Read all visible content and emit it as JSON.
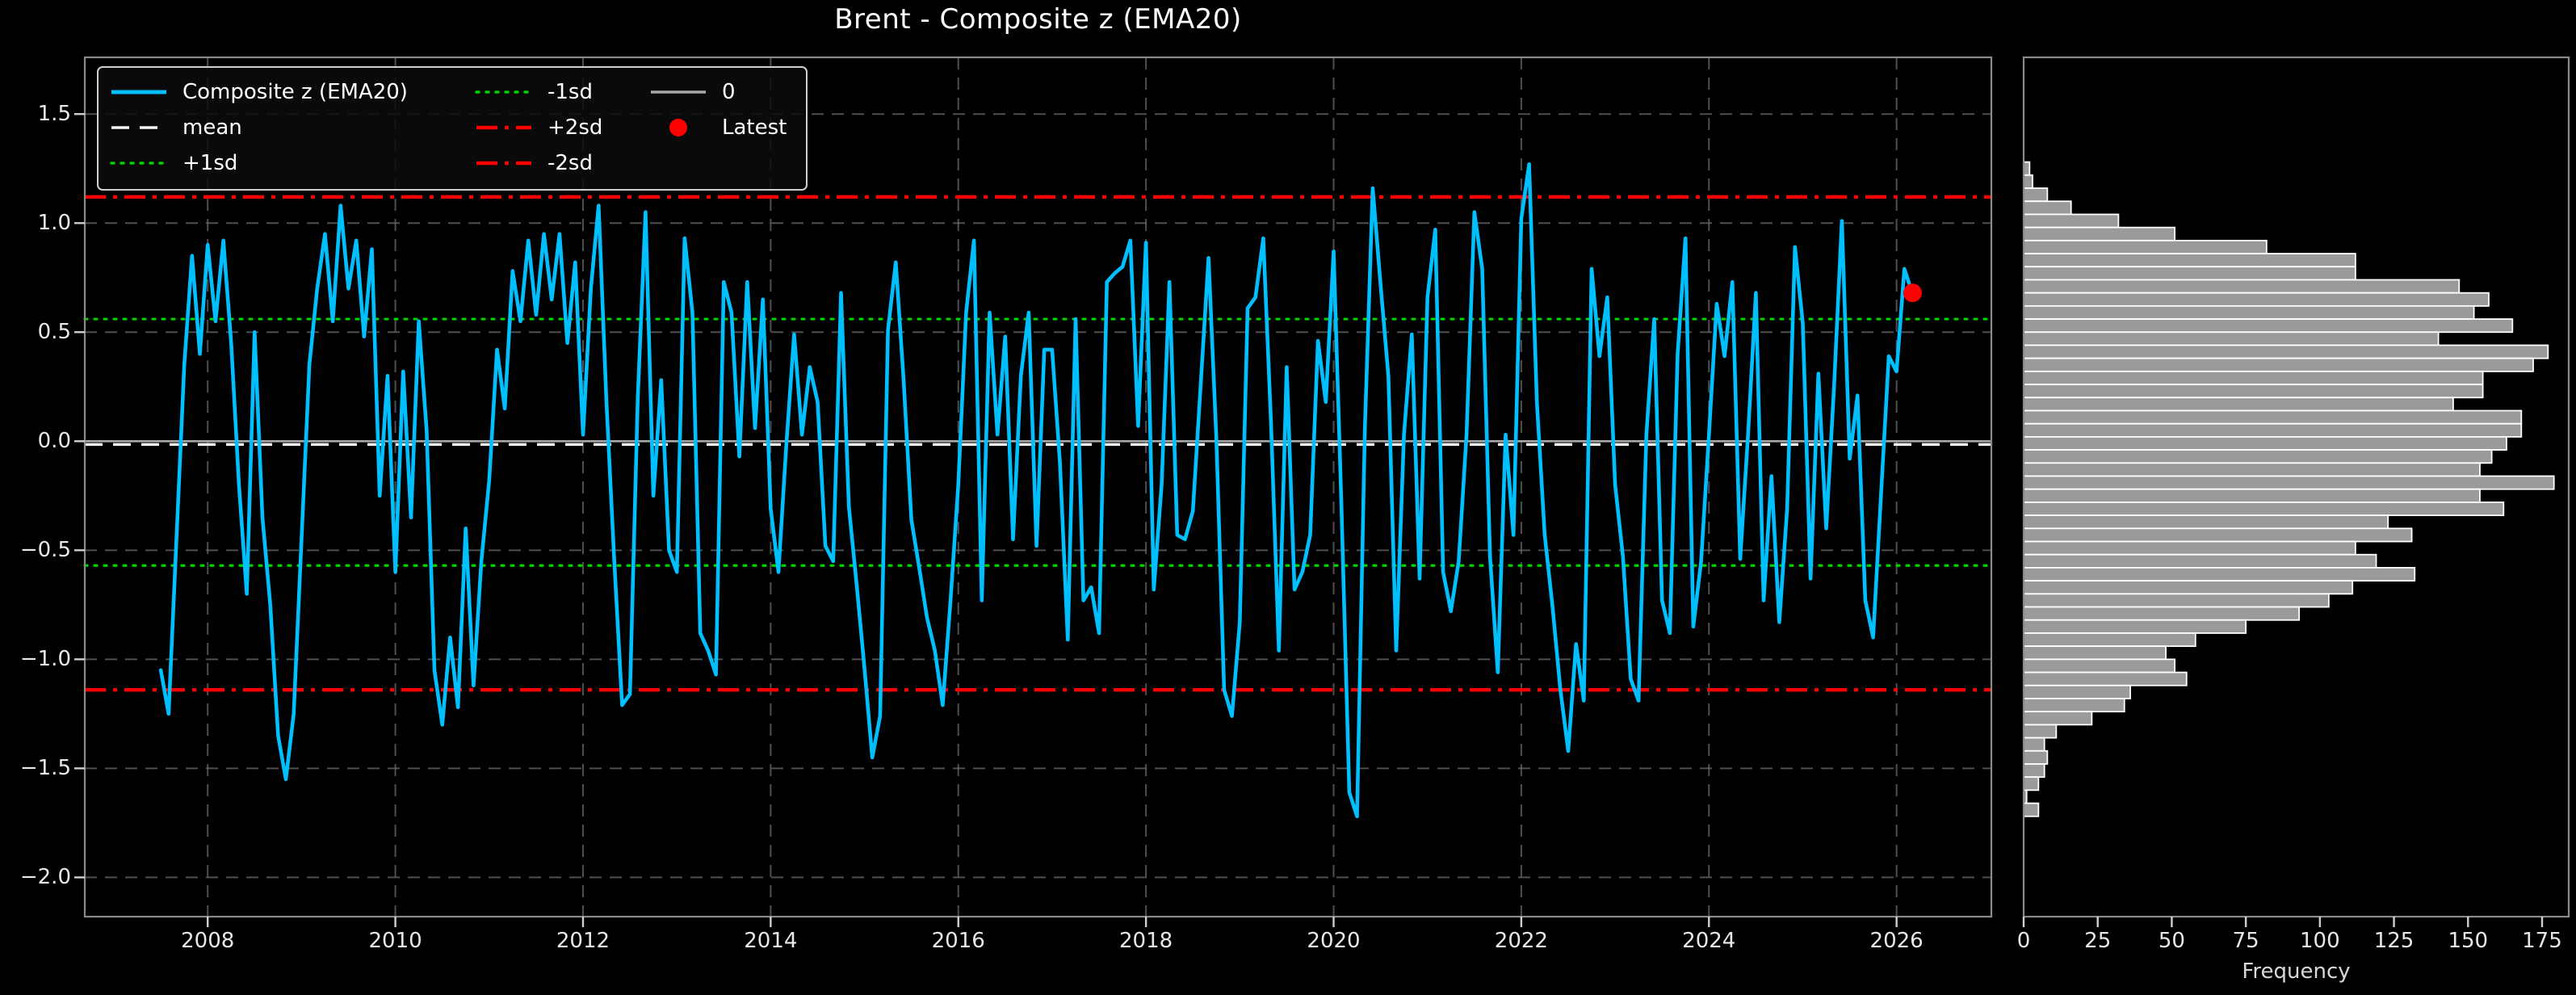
{
  "title": "Brent - Composite z (EMA20)",
  "colors": {
    "background": "#000000",
    "series": "#00bfff",
    "mean_line": "#f5f5f5",
    "sd1_line": "#00d400",
    "sd2_line": "#ff0000",
    "zero_line": "#a8a8a8",
    "grid": "#6a6a6a",
    "spine": "#8a8a8a",
    "tick_mark": "#cfcfcf",
    "tick_label": "#e8e8e8",
    "hist_fill": "#9a9a9a",
    "hist_edge": "#ffffff",
    "latest_marker": "#ff0000"
  },
  "legend": {
    "columns": [
      [
        {
          "label": "Composite z (EMA20)",
          "swatch": "solid-blue"
        },
        {
          "label": "mean",
          "swatch": "dashed-white"
        },
        {
          "label": "+1sd",
          "swatch": "dotted-green"
        }
      ],
      [
        {
          "label": "-1sd",
          "swatch": "dotted-green"
        },
        {
          "label": "+2sd",
          "swatch": "dashdot-red"
        },
        {
          "label": "-2sd",
          "swatch": "dashdot-red"
        }
      ],
      [
        {
          "label": "0",
          "swatch": "solid-gray"
        },
        {
          "label": "Latest",
          "swatch": "dot-red"
        }
      ]
    ]
  },
  "chart_data": [
    {
      "type": "line",
      "name": "composite-z-timeseries",
      "title": "Brent - Composite z (EMA20)",
      "xlabel": "",
      "ylabel": "",
      "x_range": [
        2006.69,
        2027.01
      ],
      "y_range": [
        -2.18,
        1.76
      ],
      "grid": true,
      "legend_position": "upper-left",
      "x_label_ticks": [
        {
          "value": 2008,
          "label": "2008"
        },
        {
          "value": 2010,
          "label": "2010"
        },
        {
          "value": 2012,
          "label": "2012"
        },
        {
          "value": 2014,
          "label": "2014"
        },
        {
          "value": 2016,
          "label": "2016"
        },
        {
          "value": 2018,
          "label": "2018"
        },
        {
          "value": 2020,
          "label": "2020"
        },
        {
          "value": 2022,
          "label": "2022"
        },
        {
          "value": 2024,
          "label": "2024"
        },
        {
          "value": 2026,
          "label": "2026"
        }
      ],
      "y_label_ticks": [
        {
          "value": 1.5,
          "label": "1.5"
        },
        {
          "value": 1.0,
          "label": "1.0"
        },
        {
          "value": 0.5,
          "label": "0.5"
        },
        {
          "value": 0.0,
          "label": "0.0"
        },
        {
          "value": -0.5,
          "label": "−0.5"
        },
        {
          "value": -1.0,
          "label": "−1.0"
        },
        {
          "value": -1.5,
          "label": "−1.5"
        },
        {
          "value": -2.0,
          "label": "−2.0"
        }
      ],
      "reference_lines": [
        {
          "name": "zero",
          "label": "0",
          "value": 0.0,
          "style": "solid-gray"
        },
        {
          "name": "mean",
          "label": "mean",
          "value": -0.015,
          "style": "dashed-white"
        },
        {
          "name": "plus1sd",
          "label": "+1sd",
          "value": 0.56,
          "style": "dotted-green"
        },
        {
          "name": "minus1sd",
          "label": "-1sd",
          "value": -0.57,
          "style": "dotted-green"
        },
        {
          "name": "plus2sd",
          "label": "+2sd",
          "value": 1.12,
          "style": "dashdot-red"
        },
        {
          "name": "minus2sd",
          "label": "-2sd",
          "value": -1.14,
          "style": "dashdot-red"
        }
      ],
      "series": [
        {
          "name": "Composite z (EMA20)",
          "color_key": "series",
          "start_year": 2007.5,
          "step_years": 0.0833333,
          "values": [
            -1.05,
            -1.25,
            -0.45,
            0.35,
            0.85,
            0.4,
            0.9,
            0.55,
            0.92,
            0.45,
            -0.2,
            -0.7,
            0.5,
            -0.35,
            -0.75,
            -1.35,
            -1.55,
            -1.25,
            -0.45,
            0.35,
            0.7,
            0.95,
            0.55,
            1.08,
            0.7,
            0.92,
            0.48,
            0.88,
            -0.25,
            0.3,
            -0.6,
            0.32,
            -0.35,
            0.55,
            0.05,
            -1.05,
            -1.3,
            -0.9,
            -1.22,
            -0.4,
            -1.12,
            -0.55,
            -0.18,
            0.42,
            0.15,
            0.78,
            0.55,
            0.92,
            0.58,
            0.95,
            0.65,
            0.95,
            0.45,
            0.82,
            0.03,
            0.7,
            1.08,
            0.18,
            -0.55,
            -1.21,
            -1.16,
            0.2,
            1.05,
            -0.25,
            0.28,
            -0.5,
            -0.6,
            0.93,
            0.59,
            -0.88,
            -0.96,
            -1.07,
            0.73,
            0.59,
            -0.07,
            0.73,
            0.06,
            0.65,
            -0.31,
            -0.6,
            -0.02,
            0.49,
            0.03,
            0.34,
            0.18,
            -0.48,
            -0.55,
            0.68,
            -0.3,
            -0.66,
            -1.04,
            -1.45,
            -1.26,
            0.51,
            0.82,
            0.28,
            -0.36,
            -0.58,
            -0.81,
            -0.96,
            -1.21,
            -0.73,
            -0.2,
            0.59,
            0.92,
            -0.73,
            0.59,
            0.03,
            0.48,
            -0.45,
            0.3,
            0.59,
            -0.48,
            0.42,
            0.42,
            -0.1,
            -0.91,
            0.56,
            -0.73,
            -0.67,
            -0.88,
            0.73,
            0.77,
            0.8,
            0.92,
            0.07,
            0.91,
            -0.68,
            -0.2,
            0.73,
            -0.43,
            -0.45,
            -0.32,
            0.26,
            0.84,
            0.01,
            -1.14,
            -1.26,
            -0.83,
            0.61,
            0.66,
            0.93,
            0.08,
            -0.96,
            0.34,
            -0.68,
            -0.6,
            -0.43,
            0.46,
            0.18,
            0.87,
            -0.3,
            -1.61,
            -1.72,
            0.06,
            1.16,
            0.72,
            0.3,
            -0.96,
            0.03,
            0.49,
            -0.63,
            0.66,
            0.97,
            -0.6,
            -0.78,
            -0.55,
            0.03,
            1.05,
            0.79,
            -0.53,
            -1.06,
            0.03,
            -0.43,
            1.02,
            1.27,
            0.18,
            -0.43,
            -0.76,
            -1.14,
            -1.42,
            -0.93,
            -1.19,
            0.79,
            0.39,
            0.66,
            -0.2,
            -0.53,
            -1.09,
            -1.19,
            0.03,
            0.56,
            -0.73,
            -0.88,
            0.4,
            0.93,
            -0.85,
            -0.55,
            0.03,
            0.63,
            0.39,
            0.73,
            -0.54,
            0.03,
            0.68,
            -0.73,
            -0.16,
            -0.83,
            -0.31,
            0.89,
            0.54,
            -0.63,
            0.31,
            -0.4,
            0.25,
            1.01,
            -0.08,
            0.21,
            -0.73,
            -0.9,
            -0.25,
            0.39,
            0.32,
            0.79,
            0.68
          ]
        }
      ],
      "latest_point": {
        "year": 2026.17,
        "value": 0.68
      }
    },
    {
      "type": "bar",
      "name": "z-distribution-histogram",
      "orientation": "horizontal",
      "xlabel": "Frequency",
      "x_range": [
        0,
        184
      ],
      "x_label_ticks": [
        {
          "value": 0,
          "label": "0"
        },
        {
          "value": 25,
          "label": "25"
        },
        {
          "value": 50,
          "label": "50"
        },
        {
          "value": 75,
          "label": "75"
        },
        {
          "value": 100,
          "label": "100"
        },
        {
          "value": 125,
          "label": "125"
        },
        {
          "value": 150,
          "label": "150"
        },
        {
          "value": 175,
          "label": "175"
        }
      ],
      "bins": {
        "top_z": 1.28,
        "width_z": 0.06
      },
      "values": [
        2,
        3,
        8,
        16,
        32,
        51,
        82,
        112,
        112,
        147,
        157,
        152,
        165,
        140,
        177,
        172,
        155,
        155,
        145,
        168,
        168,
        163,
        158,
        154,
        179,
        154,
        162,
        123,
        131,
        112,
        119,
        132,
        111,
        103,
        93,
        75,
        58,
        48,
        51,
        55,
        36,
        34,
        23,
        11,
        7,
        8,
        7,
        5,
        1,
        5
      ]
    }
  ]
}
